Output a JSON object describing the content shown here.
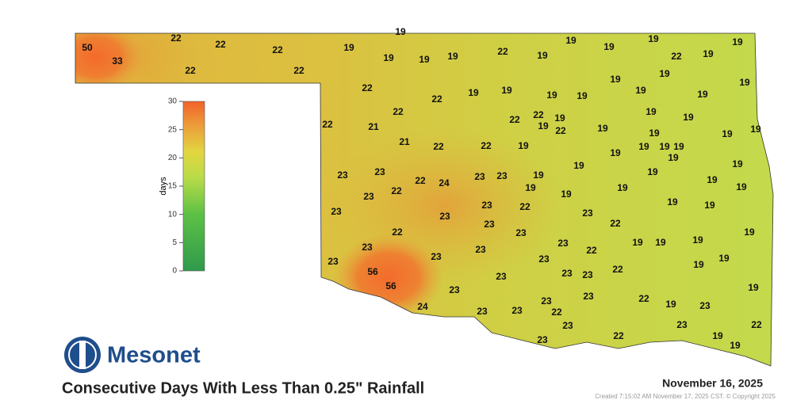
{
  "logo": "Mesonet",
  "title": "Consecutive Days With Less Than 0.25\" Rainfall",
  "date": "November 16, 2025",
  "created": "Created 7:15:02 AM November 17, 2025 CST. © Copyright 2025",
  "colorbar": {
    "label": "days",
    "lim": [
      0,
      30
    ],
    "ticks": [
      0,
      5,
      10,
      15,
      20,
      25,
      30
    ]
  },
  "stations": [
    50,
    33,
    22,
    22,
    22,
    22,
    22,
    19,
    19,
    19,
    19,
    19,
    22,
    19,
    19,
    19,
    19,
    22,
    19,
    19,
    19,
    19,
    19,
    19,
    19,
    22,
    22,
    19,
    19,
    19,
    19,
    22,
    22,
    22,
    19,
    19,
    22,
    19,
    19,
    22,
    21,
    21,
    22,
    22,
    19,
    19,
    19,
    19,
    19,
    19,
    19,
    19,
    19,
    19,
    19,
    19,
    19,
    23,
    23,
    23,
    22,
    22,
    24,
    23,
    23,
    19,
    19,
    19,
    19,
    19,
    19,
    23,
    23,
    23,
    22,
    23,
    19,
    19,
    22,
    23,
    23,
    22,
    19,
    23,
    23,
    23,
    22,
    19,
    19,
    19,
    19,
    19,
    23,
    56,
    23,
    23,
    23,
    23,
    22,
    56,
    23,
    23,
    23,
    22,
    19,
    23,
    19,
    24,
    23,
    23,
    23,
    22,
    23,
    23,
    22,
    23,
    22,
    19,
    19
  ]
}
